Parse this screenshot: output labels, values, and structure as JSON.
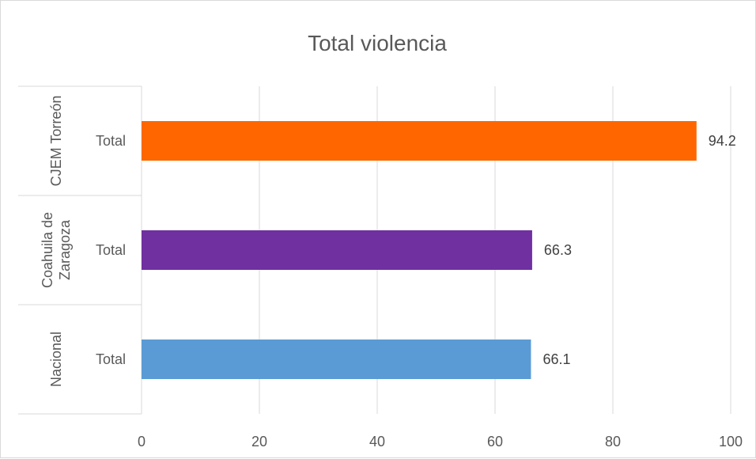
{
  "chart_data": {
    "type": "bar",
    "orientation": "horizontal",
    "title": "Total violencia",
    "xlim": [
      0,
      100
    ],
    "x_ticks": [
      "0",
      "20",
      "40",
      "60",
      "80",
      "100"
    ],
    "grid": true,
    "legend": "none",
    "rows": [
      {
        "group": "CJEM Torreón",
        "category": "Total",
        "value": 94.2,
        "value_label": "94.2",
        "color": "#ff6600"
      },
      {
        "group": "Coahuila de Zaragoza",
        "category": "Total",
        "value": 66.3,
        "value_label": "66.3",
        "color": "#7030a0"
      },
      {
        "group": "Nacional",
        "category": "Total",
        "value": 66.1,
        "value_label": "66.1",
        "color": "#5b9bd5"
      }
    ]
  }
}
